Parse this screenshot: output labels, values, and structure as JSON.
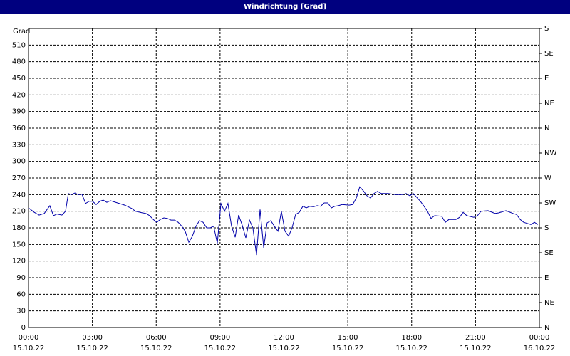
{
  "chart_data": {
    "type": "line",
    "title": "Windrichtung [Grad]",
    "y_label": "Grad",
    "ylim": [
      0,
      540
    ],
    "yticks": [
      0,
      30,
      60,
      90,
      120,
      150,
      180,
      210,
      240,
      270,
      300,
      330,
      360,
      390,
      420,
      450,
      480,
      510
    ],
    "y2lim": [
      0,
      540
    ],
    "y2ticks": [
      {
        "value": 0,
        "label": "N"
      },
      {
        "value": 45,
        "label": "NE"
      },
      {
        "value": 90,
        "label": "E"
      },
      {
        "value": 135,
        "label": "SE"
      },
      {
        "value": 180,
        "label": "S"
      },
      {
        "value": 225,
        "label": "SW"
      },
      {
        "value": 270,
        "label": "W"
      },
      {
        "value": 315,
        "label": "NW"
      },
      {
        "value": 360,
        "label": "N"
      },
      {
        "value": 405,
        "label": "NE"
      },
      {
        "value": 450,
        "label": "E"
      },
      {
        "value": 495,
        "label": "SE"
      },
      {
        "value": 540,
        "label": "S"
      }
    ],
    "xlim": [
      0,
      24
    ],
    "xticks": [
      {
        "value": 0,
        "label": "00:00",
        "date": "15.10.22"
      },
      {
        "value": 3,
        "label": "03:00",
        "date": "15.10.22"
      },
      {
        "value": 6,
        "label": "06:00",
        "date": "15.10.22"
      },
      {
        "value": 9,
        "label": "09:00",
        "date": "15.10.22"
      },
      {
        "value": 12,
        "label": "12:00",
        "date": "15.10.22"
      },
      {
        "value": 15,
        "label": "15:00",
        "date": "15.10.22"
      },
      {
        "value": 18,
        "label": "18:00",
        "date": "15.10.22"
      },
      {
        "value": 21,
        "label": "21:00",
        "date": "15.10.22"
      },
      {
        "value": 24,
        "label": "00:00",
        "date": "16.10.22"
      }
    ],
    "grid": true,
    "x": [
      0,
      0.27,
      0.5,
      0.74,
      1.0,
      1.17,
      1.34,
      1.57,
      1.74,
      1.87,
      2.01,
      2.18,
      2.34,
      2.51,
      2.68,
      2.85,
      3.01,
      3.18,
      3.35,
      3.51,
      3.68,
      3.85,
      4.18,
      4.52,
      4.85,
      5.02,
      5.36,
      5.52,
      5.69,
      5.86,
      6.03,
      6.19,
      6.36,
      6.53,
      6.69,
      6.86,
      7.03,
      7.2,
      7.36,
      7.53,
      7.7,
      7.87,
      8.03,
      8.2,
      8.37,
      8.54,
      8.7,
      8.87,
      9.04,
      9.21,
      9.37,
      9.54,
      9.71,
      9.87,
      10.04,
      10.21,
      10.38,
      10.54,
      10.71,
      10.88,
      11.05,
      11.21,
      11.38,
      11.55,
      11.72,
      11.88,
      12.05,
      12.22,
      12.38,
      12.55,
      12.72,
      12.89,
      13.05,
      13.22,
      13.39,
      13.56,
      13.72,
      13.89,
      14.06,
      14.23,
      14.39,
      14.56,
      14.73,
      15.06,
      15.23,
      15.4,
      15.56,
      15.73,
      15.9,
      16.07,
      16.23,
      16.4,
      16.57,
      16.9,
      17.24,
      17.57,
      17.74,
      17.91,
      18.08,
      18.24,
      18.41,
      18.58,
      18.74,
      18.91,
      19.08,
      19.41,
      19.58,
      19.75,
      20.08,
      20.25,
      20.42,
      20.59,
      20.92,
      21.09,
      21.26,
      21.59,
      21.92,
      22.09,
      22.43,
      22.76,
      22.93,
      23.1,
      23.26,
      23.6,
      23.77,
      23.93
    ],
    "series": [
      {
        "name": "Windrichtung",
        "color": "#0000aa",
        "values": [
          216,
          208,
          203,
          206,
          220,
          202,
          205,
          203,
          210,
          242,
          240,
          243,
          240,
          241,
          224,
          228,
          228,
          222,
          228,
          230,
          226,
          229,
          225,
          221,
          215,
          210,
          207,
          206,
          202,
          195,
          190,
          195,
          198,
          197,
          194,
          194,
          190,
          183,
          174,
          154,
          165,
          183,
          193,
          190,
          180,
          180,
          183,
          152,
          224,
          210,
          224,
          183,
          163,
          203,
          185,
          162,
          194,
          180,
          131,
          213,
          144,
          189,
          193,
          183,
          174,
          210,
          174,
          165,
          180,
          204,
          208,
          219,
          216,
          219,
          218,
          220,
          219,
          225,
          225,
          216,
          219,
          220,
          222,
          221,
          222,
          234,
          254,
          247,
          238,
          234,
          242,
          246,
          242,
          242,
          240,
          240,
          242,
          238,
          242,
          235,
          228,
          219,
          210,
          197,
          202,
          201,
          190,
          195,
          195,
          199,
          208,
          202,
          199,
          202,
          210,
          211,
          206,
          207,
          211,
          206,
          204,
          195,
          190,
          186,
          190,
          186
        ]
      }
    ]
  }
}
